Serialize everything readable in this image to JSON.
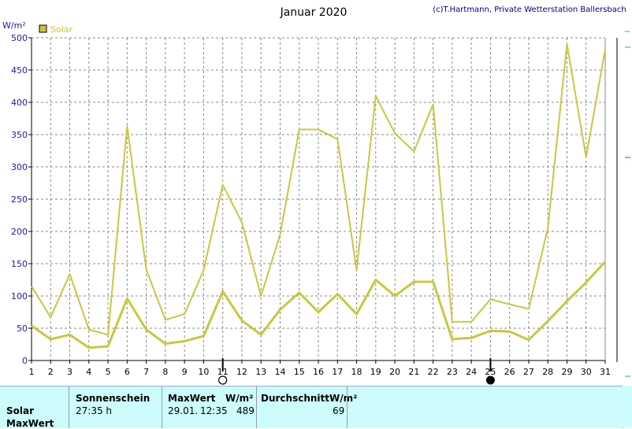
{
  "title": "Januar 2020",
  "copyright": "(c)T.Hartmann, Private Wetterstation Ballersbach",
  "colors": {
    "series": "#c8c83c",
    "grid": "#888888",
    "panel_bg": "#ccfcfc",
    "ytick": "#1a1ab0"
  },
  "chart_data": {
    "type": "line",
    "ylabel": "W/m²",
    "ylim": [
      0,
      500
    ],
    "yticks": [
      0,
      50,
      100,
      150,
      200,
      250,
      300,
      350,
      400,
      450,
      500
    ],
    "x": [
      1,
      2,
      3,
      4,
      5,
      6,
      7,
      8,
      9,
      10,
      11,
      12,
      13,
      14,
      15,
      16,
      17,
      18,
      19,
      20,
      21,
      22,
      23,
      24,
      25,
      26,
      27,
      28,
      29,
      30,
      31
    ],
    "legend": {
      "placement": "top-left"
    },
    "grid": true,
    "series": [
      {
        "name": "Solar",
        "role": "max",
        "values": [
          115,
          67,
          134,
          48,
          40,
          363,
          141,
          63,
          72,
          140,
          272,
          214,
          100,
          195,
          358,
          358,
          343,
          140,
          410,
          352,
          324,
          397,
          60,
          60,
          95,
          87,
          80,
          205,
          490,
          315,
          482
        ]
      },
      {
        "name": "",
        "role": "mean",
        "values": [
          54,
          33,
          40,
          20,
          22,
          96,
          48,
          26,
          30,
          38,
          107,
          62,
          40,
          79,
          105,
          75,
          103,
          72,
          125,
          100,
          122,
          122,
          33,
          35,
          46,
          45,
          32,
          61,
          92,
          121,
          153
        ]
      }
    ],
    "markers": [
      {
        "x": 11,
        "symbol": "full-moon-icon"
      },
      {
        "x": 25,
        "symbol": "new-moon-icon"
      }
    ]
  },
  "panel": {
    "row_labels": [
      "Solar",
      "MaxWert"
    ],
    "sonnenschein": {
      "header": "Sonnenschein",
      "value": "27:35 h"
    },
    "maxwert": {
      "header": "MaxWert",
      "unit": "W/m²",
      "date": "29.01.",
      "time": "12:35",
      "value": "489"
    },
    "durchschnitt": {
      "header": "DurchschnittW/m²",
      "value": "69"
    }
  }
}
